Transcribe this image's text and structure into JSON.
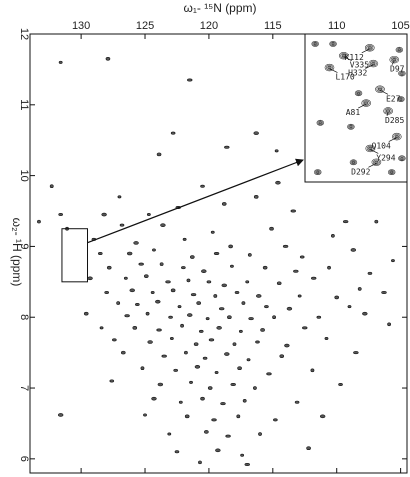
{
  "chart_data": {
    "type": "scatter",
    "title": "",
    "xlabel": "ω₁- ¹⁵N  (ppm)",
    "ylabel": "ω₂- ¹H  (ppm)",
    "xlim": [
      134.0,
      104.5
    ],
    "ylim": [
      12.0,
      5.8
    ],
    "x_ticks": [
      130,
      125,
      120,
      115,
      110,
      105
    ],
    "y_ticks": [
      12,
      11,
      10,
      9,
      8,
      7,
      6
    ],
    "zoom_region": {
      "x": [
        131.5,
        129.5
      ],
      "y": [
        9.25,
        8.5
      ]
    },
    "inset": {
      "xlim": [
        131.5,
        129.5
      ],
      "ylim": [
        9.25,
        8.5
      ],
      "assignments": [
        {
          "label": "K112",
          "x": 130.23,
          "y": 9.18
        },
        {
          "label": "V335",
          "x": 130.74,
          "y": 9.14
        },
        {
          "label": "H332",
          "x": 130.16,
          "y": 9.1
        },
        {
          "label": "D97",
          "x": 129.75,
          "y": 9.12
        },
        {
          "label": "L170",
          "x": 131.02,
          "y": 9.08
        },
        {
          "label": "E27",
          "x": 130.03,
          "y": 8.97
        },
        {
          "label": "A81",
          "x": 130.3,
          "y": 8.9
        },
        {
          "label": "D285",
          "x": 129.87,
          "y": 8.86
        },
        {
          "label": "Q104",
          "x": 129.7,
          "y": 8.73
        },
        {
          "label": "Y294",
          "x": 130.22,
          "y": 8.67
        },
        {
          "label": "D292",
          "x": 130.1,
          "y": 8.6
        }
      ],
      "extra_peaks": [
        [
          131.3,
          9.2
        ],
        [
          130.95,
          9.2
        ],
        [
          129.65,
          9.17
        ],
        [
          129.6,
          9.05
        ],
        [
          130.45,
          8.95
        ],
        [
          129.62,
          8.92
        ],
        [
          131.2,
          8.8
        ],
        [
          130.6,
          8.78
        ],
        [
          129.6,
          8.62
        ],
        [
          130.55,
          8.6
        ],
        [
          131.25,
          8.55
        ],
        [
          129.8,
          8.55
        ]
      ]
    },
    "peaks": [
      [
        131.6,
        11.6
      ],
      [
        127.9,
        11.65
      ],
      [
        121.5,
        11.35
      ],
      [
        109.3,
        11.85
      ],
      [
        122.8,
        10.6
      ],
      [
        116.3,
        10.6
      ],
      [
        114.7,
        10.35
      ],
      [
        123.9,
        10.3
      ],
      [
        118.6,
        10.4
      ],
      [
        132.3,
        9.85
      ],
      [
        120.5,
        9.85
      ],
      [
        114.6,
        9.9
      ],
      [
        127.0,
        9.7
      ],
      [
        116.3,
        9.7
      ],
      [
        122.4,
        9.55
      ],
      [
        133.3,
        9.35
      ],
      [
        131.6,
        9.45
      ],
      [
        128.2,
        9.45
      ],
      [
        124.7,
        9.45
      ],
      [
        118.8,
        9.6
      ],
      [
        113.4,
        9.5
      ],
      [
        131.1,
        9.25
      ],
      [
        126.8,
        9.3
      ],
      [
        123.6,
        9.3
      ],
      [
        119.7,
        9.2
      ],
      [
        115.1,
        9.25
      ],
      [
        109.3,
        9.35
      ],
      [
        106.9,
        9.35
      ],
      [
        129.0,
        9.1
      ],
      [
        125.7,
        9.05
      ],
      [
        121.9,
        9.1
      ],
      [
        118.3,
        9.0
      ],
      [
        114.0,
        9.0
      ],
      [
        110.3,
        9.15
      ],
      [
        128.5,
        8.9
      ],
      [
        126.2,
        8.9
      ],
      [
        124.3,
        8.95
      ],
      [
        121.3,
        8.85
      ],
      [
        119.4,
        8.9
      ],
      [
        116.8,
        8.88
      ],
      [
        112.7,
        8.85
      ],
      [
        108.7,
        8.95
      ],
      [
        105.6,
        8.8
      ],
      [
        127.8,
        8.7
      ],
      [
        125.3,
        8.75
      ],
      [
        123.7,
        8.75
      ],
      [
        122.0,
        8.7
      ],
      [
        120.4,
        8.65
      ],
      [
        118.2,
        8.72
      ],
      [
        115.6,
        8.7
      ],
      [
        113.2,
        8.65
      ],
      [
        110.6,
        8.7
      ],
      [
        107.4,
        8.62
      ],
      [
        129.3,
        8.55
      ],
      [
        126.5,
        8.55
      ],
      [
        124.9,
        8.58
      ],
      [
        123.2,
        8.5
      ],
      [
        121.6,
        8.52
      ],
      [
        120.0,
        8.5
      ],
      [
        118.8,
        8.45
      ],
      [
        117.0,
        8.5
      ],
      [
        114.5,
        8.48
      ],
      [
        111.8,
        8.55
      ],
      [
        108.2,
        8.4
      ],
      [
        128.0,
        8.35
      ],
      [
        126.0,
        8.38
      ],
      [
        124.4,
        8.35
      ],
      [
        122.8,
        8.38
      ],
      [
        121.2,
        8.32
      ],
      [
        119.5,
        8.3
      ],
      [
        117.8,
        8.35
      ],
      [
        116.1,
        8.3
      ],
      [
        112.9,
        8.3
      ],
      [
        110.0,
        8.28
      ],
      [
        106.3,
        8.35
      ],
      [
        127.1,
        8.2
      ],
      [
        125.6,
        8.18
      ],
      [
        124.0,
        8.22
      ],
      [
        122.3,
        8.15
      ],
      [
        120.8,
        8.2
      ],
      [
        119.0,
        8.12
      ],
      [
        117.3,
        8.2
      ],
      [
        115.5,
        8.15
      ],
      [
        113.7,
        8.12
      ],
      [
        109.0,
        8.15
      ],
      [
        129.6,
        8.05
      ],
      [
        126.4,
        8.02
      ],
      [
        124.8,
        8.05
      ],
      [
        123.0,
        8.0
      ],
      [
        121.5,
        8.03
      ],
      [
        120.1,
        7.98
      ],
      [
        118.4,
        8.0
      ],
      [
        116.7,
        7.98
      ],
      [
        114.9,
        8.0
      ],
      [
        111.4,
        8.0
      ],
      [
        107.8,
        8.05
      ],
      [
        128.4,
        7.85
      ],
      [
        125.8,
        7.85
      ],
      [
        123.9,
        7.82
      ],
      [
        122.1,
        7.88
      ],
      [
        120.6,
        7.8
      ],
      [
        119.2,
        7.85
      ],
      [
        117.5,
        7.8
      ],
      [
        115.8,
        7.82
      ],
      [
        112.5,
        7.85
      ],
      [
        105.9,
        7.9
      ],
      [
        127.4,
        7.68
      ],
      [
        124.6,
        7.65
      ],
      [
        122.9,
        7.7
      ],
      [
        121.0,
        7.62
      ],
      [
        119.8,
        7.68
      ],
      [
        118.0,
        7.62
      ],
      [
        116.2,
        7.65
      ],
      [
        113.9,
        7.6
      ],
      [
        110.8,
        7.7
      ],
      [
        126.7,
        7.5
      ],
      [
        123.5,
        7.45
      ],
      [
        121.8,
        7.5
      ],
      [
        120.3,
        7.42
      ],
      [
        118.6,
        7.48
      ],
      [
        116.9,
        7.4
      ],
      [
        114.3,
        7.45
      ],
      [
        108.5,
        7.5
      ],
      [
        125.2,
        7.28
      ],
      [
        122.6,
        7.25
      ],
      [
        120.9,
        7.3
      ],
      [
        119.4,
        7.22
      ],
      [
        117.6,
        7.28
      ],
      [
        115.3,
        7.2
      ],
      [
        111.9,
        7.25
      ],
      [
        127.6,
        7.1
      ],
      [
        123.8,
        7.05
      ],
      [
        121.4,
        7.08
      ],
      [
        119.9,
        7.0
      ],
      [
        118.1,
        7.05
      ],
      [
        116.4,
        7.0
      ],
      [
        109.7,
        7.05
      ],
      [
        124.3,
        6.85
      ],
      [
        122.2,
        6.8
      ],
      [
        120.5,
        6.85
      ],
      [
        118.9,
        6.78
      ],
      [
        117.2,
        6.82
      ],
      [
        113.1,
        6.8
      ],
      [
        131.6,
        6.62
      ],
      [
        125.0,
        6.62
      ],
      [
        121.7,
        6.6
      ],
      [
        119.6,
        6.55
      ],
      [
        117.7,
        6.6
      ],
      [
        114.8,
        6.55
      ],
      [
        111.1,
        6.6
      ],
      [
        123.1,
        6.35
      ],
      [
        120.2,
        6.38
      ],
      [
        118.5,
        6.32
      ],
      [
        116.0,
        6.35
      ],
      [
        122.5,
        6.1
      ],
      [
        119.3,
        6.12
      ],
      [
        117.4,
        6.05
      ],
      [
        112.2,
        6.15
      ],
      [
        117.0,
        5.92
      ],
      [
        120.7,
        5.95
      ]
    ]
  }
}
